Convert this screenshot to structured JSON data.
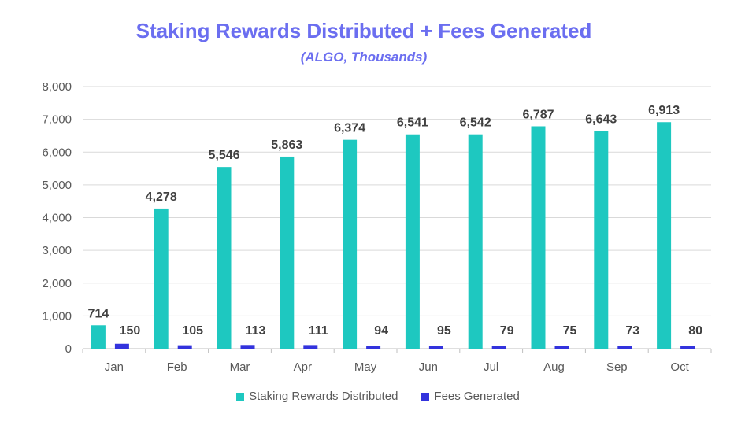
{
  "chart_data": {
    "type": "bar",
    "title": "Staking Rewards Distributed + Fees Generated",
    "subtitle": "(ALGO, Thousands)",
    "categories": [
      "Jan",
      "Feb",
      "Mar",
      "Apr",
      "May",
      "Jun",
      "Jul",
      "Aug",
      "Sep",
      "Oct"
    ],
    "series": [
      {
        "name": "Staking Rewards Distributed",
        "color": "#1ec8c0",
        "values": [
          714,
          4278,
          5546,
          5863,
          6374,
          6541,
          6542,
          6787,
          6643,
          6913
        ],
        "labels": [
          "714",
          "4,278",
          "5,546",
          "5,863",
          "6,374",
          "6,541",
          "6,542",
          "6,787",
          "6,643",
          "6,913"
        ]
      },
      {
        "name": "Fees Generated",
        "color": "#3333dd",
        "values": [
          150,
          105,
          113,
          111,
          94,
          95,
          79,
          75,
          73,
          80
        ],
        "labels": [
          "150",
          "105",
          "113",
          "111",
          "94",
          "95",
          "79",
          "75",
          "73",
          "80"
        ]
      }
    ],
    "ylim": [
      0,
      8000
    ],
    "yticks": [
      0,
      1000,
      2000,
      3000,
      4000,
      5000,
      6000,
      7000,
      8000
    ],
    "ytick_labels": [
      "0",
      "1,000",
      "2,000",
      "3,000",
      "4,000",
      "5,000",
      "6,000",
      "7,000",
      "8,000"
    ],
    "xlabel": "",
    "ylabel": "",
    "grid": true,
    "legend_position": "bottom"
  }
}
